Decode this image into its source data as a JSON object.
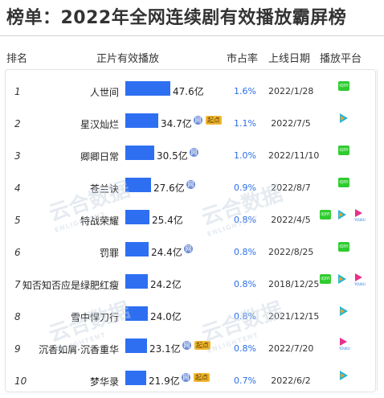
{
  "title": "榜单：2022年全网连续剧有效播放霸屏榜",
  "headers": {
    "rank": "排名",
    "views": "正片有效播放",
    "share": "市占率",
    "date": "上线日期",
    "platform": "播放平台"
  },
  "tags": {
    "wang": "网",
    "qidian": "起点"
  },
  "platform_icons": {
    "iqiyi": "iqiyi-icon",
    "tencent": "tencent-video-icon",
    "youku": "youku-icon"
  },
  "platform_icon_text": {
    "iqiyi": "iQIYI",
    "youku": "YOUKU"
  },
  "watermark": {
    "text": "云合数据",
    "sub": "ENLIGHTENT"
  },
  "colors": {
    "bar": "#2e6ff2",
    "share_text": "#2d6fe8",
    "iqiyi": "#2ecc2e",
    "tencent": "#22b5d6",
    "youku": "#e8308c",
    "qidian": "#f0b72f"
  },
  "chart_data": {
    "type": "bar",
    "orientation": "horizontal",
    "title": "榜单：2022年全网连续剧有效播放霸屏榜",
    "value_unit": "亿",
    "rows": [
      {
        "rank": "1",
        "name": "人世间",
        "value": 47.6,
        "value_label": "47.6亿",
        "share": "1.6%",
        "date": "2022/1/28",
        "tags": [],
        "platforms": [
          "iqiyi"
        ]
      },
      {
        "rank": "2",
        "name": "星汉灿烂",
        "value": 34.7,
        "value_label": "34.7亿",
        "share": "1.1%",
        "date": "2022/7/5",
        "tags": [
          "wang",
          "qidian"
        ],
        "platforms": [
          "tencent"
        ]
      },
      {
        "rank": "3",
        "name": "卿卿日常",
        "value": 30.5,
        "value_label": "30.5亿",
        "share": "1.0%",
        "date": "2022/11/10",
        "tags": [
          "wang"
        ],
        "platforms": [
          "iqiyi"
        ]
      },
      {
        "rank": "4",
        "name": "苍兰诀",
        "value": 27.6,
        "value_label": "27.6亿",
        "share": "0.9%",
        "date": "2022/8/7",
        "tags": [
          "wang"
        ],
        "platforms": [
          "iqiyi"
        ]
      },
      {
        "rank": "5",
        "name": "特战荣耀",
        "value": 25.4,
        "value_label": "25.4亿",
        "share": "0.8%",
        "date": "2022/4/5",
        "tags": [],
        "platforms": [
          "iqiyi",
          "tencent",
          "youku"
        ]
      },
      {
        "rank": "6",
        "name": "罚罪",
        "value": 24.4,
        "value_label": "24.4亿",
        "share": "0.8%",
        "date": "2022/8/25",
        "tags": [
          "wang"
        ],
        "platforms": [
          "iqiyi"
        ]
      },
      {
        "rank": "7",
        "name": "知否知否应是绿肥红瘦",
        "value": 24.2,
        "value_label": "24.2亿",
        "share": "0.8%",
        "date": "2018/12/25",
        "tags": [],
        "platforms": [
          "iqiyi",
          "tencent",
          "youku"
        ]
      },
      {
        "rank": "8",
        "name": "雪中悍刀行",
        "value": 24.0,
        "value_label": "24.0亿",
        "share": "0.8%",
        "date": "2021/12/15",
        "tags": [],
        "platforms": [
          "tencent"
        ]
      },
      {
        "rank": "9",
        "name": "沉香如屑·沉香重华",
        "value": 23.1,
        "value_label": "23.1亿",
        "share": "0.8%",
        "date": "2022/7/20",
        "tags": [
          "wang",
          "qidian"
        ],
        "platforms": [
          "youku"
        ]
      },
      {
        "rank": "10",
        "name": "梦华录",
        "value": 21.9,
        "value_label": "21.9亿",
        "share": "0.7%",
        "date": "2022/6/2",
        "tags": [
          "wang",
          "qidian"
        ],
        "platforms": [
          "tencent"
        ]
      }
    ]
  }
}
